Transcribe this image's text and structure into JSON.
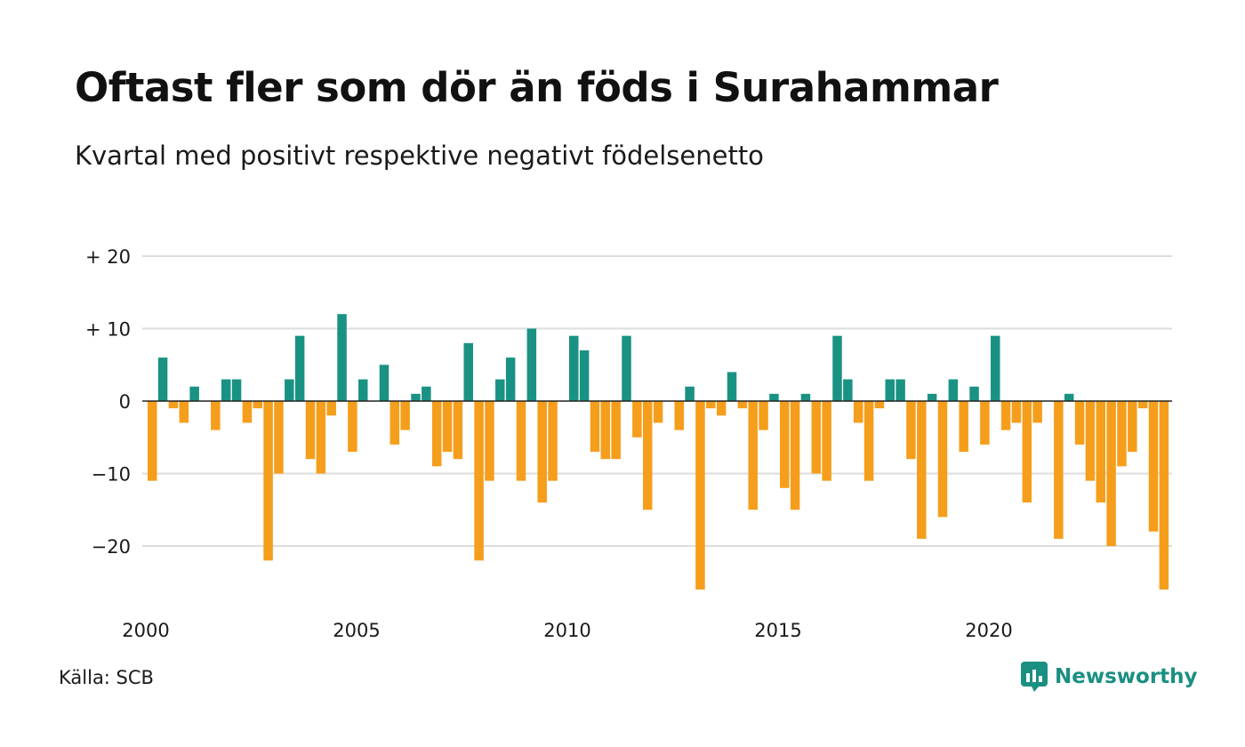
{
  "title": "Oftast fler som dör än föds i Surahammar",
  "subtitle": "Kvartal med positivt respektive negativt födelsenetto",
  "source": "Källa: SCB",
  "brand": "Newsworthy",
  "colors": {
    "positive": "#1a9283",
    "negative": "#f59e1c",
    "grid": "#dddddd",
    "zero": "#222222"
  },
  "chart_data": {
    "type": "bar",
    "xlabel": "",
    "ylabel": "",
    "ylim": [
      -28,
      22
    ],
    "yticks": [
      {
        "value": 20,
        "label": "+ 20"
      },
      {
        "value": 10,
        "label": "+ 10"
      },
      {
        "value": 0,
        "label": "0"
      },
      {
        "value": -10,
        "label": "−10"
      },
      {
        "value": -20,
        "label": "−20"
      }
    ],
    "xticks": [
      {
        "value": 2000,
        "label": "2000"
      },
      {
        "value": 2005,
        "label": "2005"
      },
      {
        "value": 2010,
        "label": "2010"
      },
      {
        "value": 2015,
        "label": "2015"
      },
      {
        "value": 2020,
        "label": "2020"
      }
    ],
    "start_year": 2000,
    "quarters_per_year": 4,
    "values": [
      -11,
      6,
      -1,
      -3,
      2,
      0,
      -4,
      3,
      3,
      -3,
      -1,
      -22,
      -10,
      3,
      9,
      -8,
      -10,
      -2,
      12,
      -7,
      3,
      0,
      5,
      -6,
      -4,
      1,
      2,
      -9,
      -7,
      -8,
      8,
      -22,
      -11,
      3,
      6,
      -11,
      10,
      -14,
      -11,
      0,
      9,
      7,
      -7,
      -8,
      -8,
      9,
      -5,
      -15,
      -3,
      0,
      -4,
      2,
      -26,
      -1,
      -2,
      4,
      -1,
      -15,
      -4,
      1,
      -12,
      -15,
      1,
      -10,
      -11,
      9,
      3,
      -3,
      -11,
      -1,
      3,
      3,
      -8,
      -19,
      1,
      -16,
      3,
      -7,
      2,
      -6,
      9,
      -4,
      -3,
      -14,
      -3,
      0,
      -19,
      1,
      -6,
      -11,
      -14,
      -20,
      -9,
      -7,
      -1,
      -18,
      -26
    ]
  }
}
